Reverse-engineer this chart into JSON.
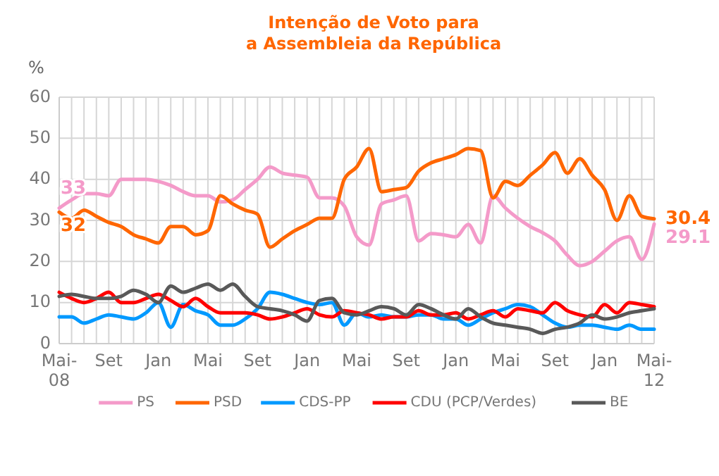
{
  "chart_data": {
    "type": "line",
    "title": "Intenção de Voto para\na Assembleia da República",
    "ylabel": "%",
    "categories": [
      "Mai-\n08",
      null,
      null,
      null,
      "Set",
      null,
      null,
      null,
      "Jan",
      null,
      null,
      null,
      "Mai",
      null,
      null,
      null,
      "Set",
      null,
      null,
      null,
      "Jan",
      null,
      null,
      null,
      "Mai",
      null,
      null,
      null,
      "Set",
      null,
      null,
      null,
      "Jan",
      null,
      null,
      null,
      "Mai",
      null,
      null,
      null,
      "Set",
      null,
      null,
      null,
      "Jan",
      null,
      null,
      null,
      "Mai-\n12"
    ],
    "ylim": [
      0,
      60
    ],
    "yticks": [
      0,
      10,
      20,
      30,
      40,
      50,
      60
    ],
    "grid": true,
    "legend": "bottom",
    "marker": "none",
    "line_style": "solid",
    "series": [
      {
        "name": "PS",
        "color": "#f49ac9",
        "values": [
          33,
          35,
          36.5,
          36.5,
          36,
          40,
          40,
          40,
          39.5,
          38.5,
          37,
          36,
          36,
          34.5,
          35,
          37.5,
          40,
          43,
          41.5,
          41,
          40.5,
          35.5,
          35.5,
          33.5,
          26,
          24,
          34,
          35,
          36,
          25,
          26.8,
          26.5,
          26,
          29,
          24.5,
          36,
          33,
          30.5,
          28.5,
          27,
          25,
          21.5,
          19,
          20,
          22.5,
          25,
          26,
          20.5,
          29.1
        ],
        "value_labels": [
          "33",
          null,
          null,
          null,
          null,
          null,
          null,
          null,
          null,
          null,
          null,
          null,
          null,
          null,
          null,
          null,
          null,
          null,
          null,
          null,
          null,
          null,
          null,
          null,
          null,
          null,
          null,
          null,
          null,
          null,
          null,
          null,
          null,
          null,
          null,
          null,
          null,
          null,
          null,
          null,
          null,
          null,
          null,
          null,
          null,
          null,
          null,
          null,
          "29.1"
        ]
      },
      {
        "name": "PSD",
        "color": "#ff6600",
        "values": [
          32,
          30.5,
          32.5,
          31,
          29.5,
          28.5,
          26.5,
          25.5,
          24.5,
          28.5,
          28.5,
          26.5,
          27.5,
          36,
          34,
          32.5,
          31.5,
          23.5,
          25.5,
          27.5,
          29,
          30.5,
          30.5,
          40,
          43,
          47.5,
          37,
          37.5,
          38,
          42,
          44,
          45,
          46,
          47.5,
          47,
          35.5,
          39.5,
          38.5,
          41,
          43.5,
          46.5,
          41.5,
          45,
          41,
          37.5,
          30,
          36,
          31,
          30.4
        ],
        "value_labels": [
          "32",
          null,
          null,
          null,
          null,
          null,
          null,
          null,
          null,
          null,
          null,
          null,
          null,
          null,
          null,
          null,
          null,
          null,
          null,
          null,
          null,
          null,
          null,
          null,
          null,
          null,
          null,
          null,
          null,
          null,
          null,
          null,
          null,
          null,
          null,
          null,
          null,
          null,
          null,
          null,
          null,
          null,
          null,
          null,
          null,
          null,
          null,
          null,
          "30.4"
        ]
      },
      {
        "name": "CDS-PP",
        "color": "#0099ff",
        "values": [
          6.5,
          6.5,
          5,
          6,
          7,
          6.5,
          6,
          7.5,
          10,
          4,
          9.5,
          8,
          7,
          4.5,
          4.5,
          6,
          8.5,
          12.5,
          12,
          11,
          10,
          9.5,
          10,
          4.5,
          7.5,
          6.5,
          7,
          6.5,
          6.5,
          7,
          7,
          6,
          6,
          4.5,
          6,
          7.5,
          8.5,
          9.5,
          9,
          7,
          5,
          4,
          4.5,
          4.5,
          4,
          3.5,
          4.5,
          3.5,
          3.5
        ]
      },
      {
        "name": "CDU (PCP/Verdes)",
        "color": "#ff0000",
        "values": [
          12.5,
          11,
          10,
          11,
          12.5,
          10,
          10,
          11,
          12,
          10.5,
          9,
          11,
          9,
          7.5,
          7.5,
          7.5,
          7,
          6,
          6.5,
          7.5,
          8.5,
          7,
          6.5,
          8,
          7.5,
          7,
          6,
          6.5,
          6.5,
          8,
          7,
          7,
          7.5,
          6,
          7,
          8,
          6.5,
          8.5,
          8,
          7.5,
          10,
          8,
          7,
          6.5,
          9.5,
          7.5,
          10,
          9.5,
          9
        ]
      },
      {
        "name": "BE",
        "color": "#595959",
        "values": [
          11.5,
          12,
          11.5,
          11,
          11,
          11.5,
          13,
          12,
          10,
          14,
          12.5,
          13.5,
          14.5,
          13,
          14.5,
          11.5,
          9,
          8.5,
          8,
          7,
          5.5,
          10.5,
          11,
          7.5,
          7,
          8,
          9,
          8.5,
          7,
          9.5,
          8.5,
          7,
          6,
          8.5,
          6.5,
          5,
          4.5,
          4,
          3.5,
          2.5,
          3.5,
          4,
          5,
          7,
          6,
          6.5,
          7.5,
          8,
          8.5
        ]
      }
    ]
  }
}
